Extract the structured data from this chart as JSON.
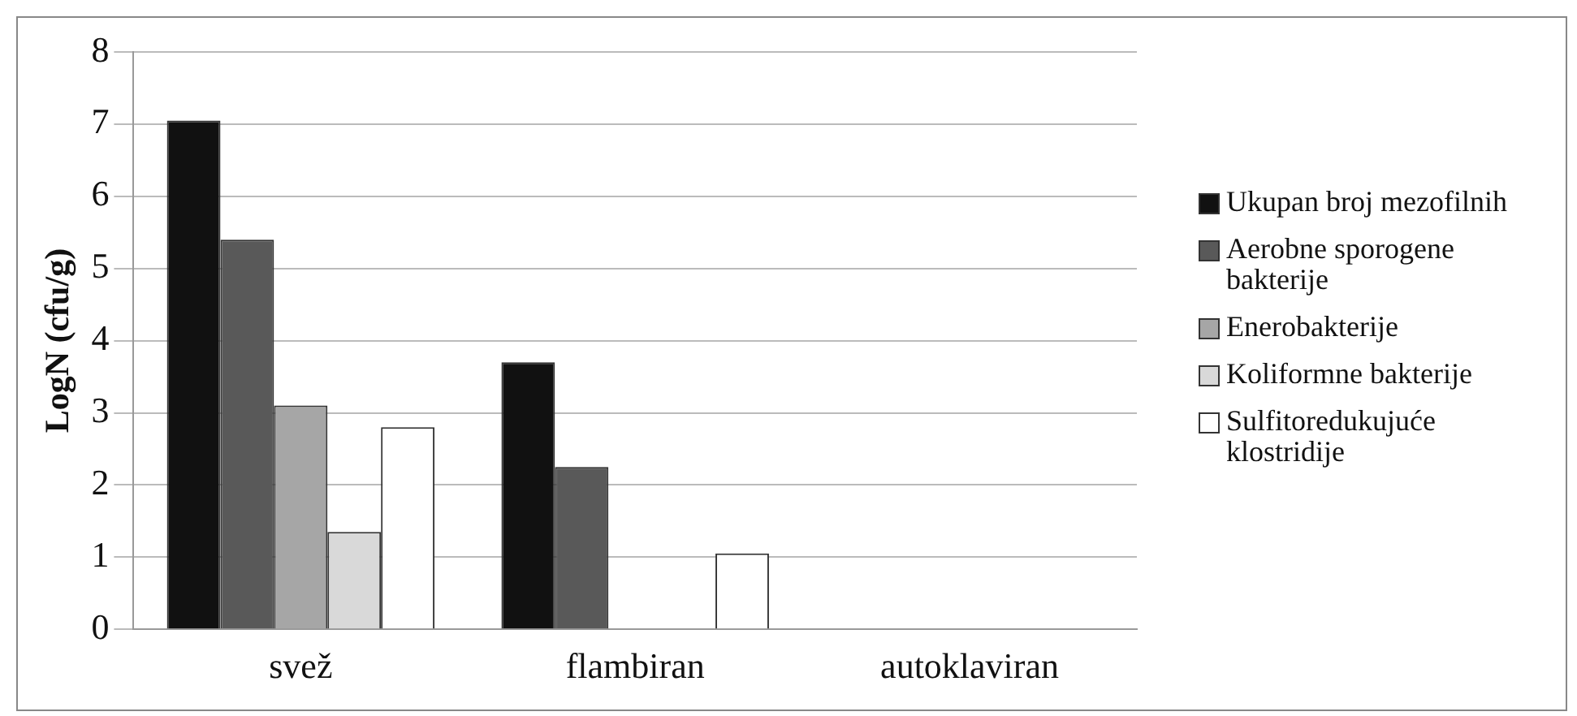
{
  "chart_data": {
    "type": "bar",
    "ylabel": "LogN (cfu/g)",
    "categories": [
      "svež",
      "flambiran",
      "autoklaviran"
    ],
    "series": [
      {
        "name": "Ukupan broj mezofilnih",
        "color": "#111111",
        "values": [
          7.05,
          3.7,
          0
        ]
      },
      {
        "name": "Aerobne sporogene bakterije",
        "color": "#595959",
        "values": [
          5.4,
          2.25,
          0
        ]
      },
      {
        "name": "Enerobakterije",
        "color": "#a6a6a6",
        "values": [
          3.1,
          0,
          0
        ]
      },
      {
        "name": "Koliformne bakterije",
        "color": "#d9d9d9",
        "values": [
          1.35,
          0,
          0
        ]
      },
      {
        "name": "Sulfitoredukujuće klostridije",
        "color": "#ffffff",
        "values": [
          2.8,
          1.05,
          0
        ]
      }
    ],
    "ylim": [
      0,
      8
    ],
    "yticks": [
      0,
      1,
      2,
      3,
      4,
      5,
      6,
      7,
      8
    ],
    "grid": "y",
    "legend": "right"
  }
}
